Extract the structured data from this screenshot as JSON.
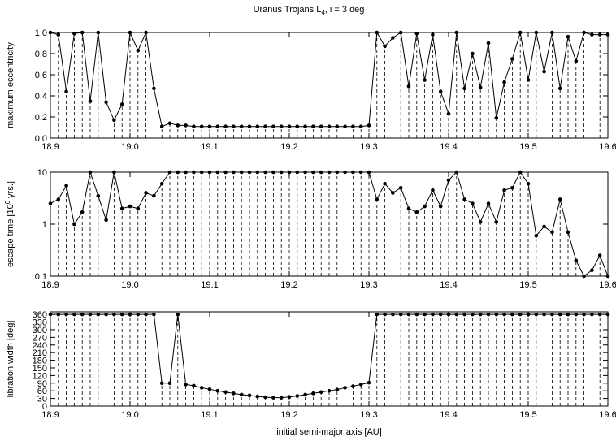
{
  "chart_data": [
    {
      "type": "line",
      "title": [
        "Uranus Trojans L",
        "4",
        ", i = 3 deg"
      ],
      "ylabel": [
        "maximum eccentricity"
      ],
      "x": [
        18.9,
        18.91,
        18.92,
        18.93,
        18.94,
        18.95,
        18.96,
        18.97,
        18.98,
        18.99,
        19.0,
        19.01,
        19.02,
        19.03,
        19.04,
        19.05,
        19.06,
        19.07,
        19.08,
        19.09,
        19.1,
        19.11,
        19.12,
        19.13,
        19.14,
        19.15,
        19.16,
        19.17,
        19.18,
        19.19,
        19.2,
        19.21,
        19.22,
        19.23,
        19.24,
        19.25,
        19.26,
        19.27,
        19.28,
        19.29,
        19.3,
        19.31,
        19.32,
        19.33,
        19.34,
        19.35,
        19.36,
        19.37,
        19.38,
        19.39,
        19.4,
        19.41,
        19.42,
        19.43,
        19.44,
        19.45,
        19.46,
        19.47,
        19.48,
        19.49,
        19.5,
        19.51,
        19.52,
        19.53,
        19.54,
        19.55,
        19.56,
        19.57,
        19.58,
        19.59,
        19.6
      ],
      "values": [
        1.0,
        0.98,
        0.44,
        0.99,
        1.0,
        0.35,
        1.0,
        0.34,
        0.17,
        0.32,
        1.0,
        0.83,
        1.0,
        0.47,
        0.11,
        0.14,
        0.12,
        0.12,
        0.11,
        0.11,
        0.11,
        0.11,
        0.11,
        0.11,
        0.11,
        0.11,
        0.11,
        0.11,
        0.11,
        0.11,
        0.11,
        0.11,
        0.11,
        0.11,
        0.11,
        0.11,
        0.11,
        0.11,
        0.11,
        0.11,
        0.12,
        1.0,
        0.87,
        0.95,
        1.0,
        0.49,
        0.99,
        0.55,
        0.98,
        0.44,
        0.23,
        1.0,
        0.47,
        0.8,
        0.48,
        0.9,
        0.19,
        0.53,
        0.75,
        1.0,
        0.55,
        1.0,
        0.63,
        1.0,
        0.47,
        0.96,
        0.73,
        1.0,
        0.98,
        0.98,
        0.98
      ],
      "color": "#000000",
      "xlim": [
        18.9,
        19.6
      ],
      "ylim": [
        0,
        1
      ],
      "xticks": [
        18.9,
        {
          "value": 19,
          "label": "19.0"
        },
        19.1,
        19.2,
        19.3,
        19.4,
        19.5,
        19.6
      ],
      "yticks": [
        {
          "value": 0,
          "label": "0.0"
        },
        0.2,
        0.4,
        0.6,
        0.8,
        {
          "value": 1,
          "label": "1.0"
        }
      ]
    },
    {
      "type": "line",
      "ylabel": [
        "escape time [10",
        "6",
        " yrs.]"
      ],
      "log_y": true,
      "x": [
        18.9,
        18.91,
        18.92,
        18.93,
        18.94,
        18.95,
        18.96,
        18.97,
        18.98,
        18.99,
        19.0,
        19.01,
        19.02,
        19.03,
        19.04,
        19.05,
        19.06,
        19.07,
        19.08,
        19.09,
        19.1,
        19.11,
        19.12,
        19.13,
        19.14,
        19.15,
        19.16,
        19.17,
        19.18,
        19.19,
        19.2,
        19.21,
        19.22,
        19.23,
        19.24,
        19.25,
        19.26,
        19.27,
        19.28,
        19.29,
        19.3,
        19.31,
        19.32,
        19.33,
        19.34,
        19.35,
        19.36,
        19.37,
        19.38,
        19.39,
        19.4,
        19.41,
        19.42,
        19.43,
        19.44,
        19.45,
        19.46,
        19.47,
        19.48,
        19.49,
        19.5,
        19.51,
        19.52,
        19.53,
        19.54,
        19.55,
        19.56,
        19.57,
        19.58,
        19.59,
        19.6
      ],
      "values": [
        2.5,
        3,
        5.5,
        1.0,
        1.7,
        10,
        3.5,
        1.2,
        10,
        2,
        2.2,
        2,
        4,
        3.5,
        6,
        10,
        10,
        10,
        10,
        10,
        10,
        10,
        10,
        10,
        10,
        10,
        10,
        10,
        10,
        10,
        10,
        10,
        10,
        10,
        10,
        10,
        10,
        10,
        10,
        10,
        10,
        3,
        6,
        4,
        5,
        2,
        1.7,
        2.2,
        4.5,
        2.2,
        7,
        10,
        3,
        2.5,
        1.1,
        2.5,
        1.1,
        4.5,
        5,
        10,
        6,
        0.6,
        0.9,
        0.7,
        3,
        0.7,
        0.2,
        0.1,
        0.13,
        0.25,
        0.1
      ],
      "color": "#000000",
      "xlim": [
        18.9,
        19.6
      ],
      "ylim": [
        0.1,
        10
      ],
      "xticks": [
        18.9,
        {
          "value": 19,
          "label": "19.0"
        },
        19.1,
        19.2,
        19.3,
        19.4,
        19.5,
        19.6
      ],
      "yticks": [
        0.1,
        1,
        10
      ]
    },
    {
      "type": "line",
      "ylabel": [
        "libration width [deg]"
      ],
      "xlabel": "initial semi-major axis [AU]",
      "x": [
        18.9,
        18.91,
        18.92,
        18.93,
        18.94,
        18.95,
        18.96,
        18.97,
        18.98,
        18.99,
        19.0,
        19.01,
        19.02,
        19.03,
        19.04,
        19.05,
        19.06,
        19.07,
        19.08,
        19.09,
        19.1,
        19.11,
        19.12,
        19.13,
        19.14,
        19.15,
        19.16,
        19.17,
        19.18,
        19.19,
        19.2,
        19.21,
        19.22,
        19.23,
        19.24,
        19.25,
        19.26,
        19.27,
        19.28,
        19.29,
        19.3,
        19.31,
        19.32,
        19.33,
        19.34,
        19.35,
        19.36,
        19.37,
        19.38,
        19.39,
        19.4,
        19.41,
        19.42,
        19.43,
        19.44,
        19.45,
        19.46,
        19.47,
        19.48,
        19.49,
        19.5,
        19.51,
        19.52,
        19.53,
        19.54,
        19.55,
        19.56,
        19.57,
        19.58,
        19.59,
        19.6
      ],
      "values": [
        360,
        360,
        360,
        360,
        360,
        360,
        360,
        360,
        360,
        360,
        360,
        360,
        360,
        360,
        90,
        90,
        360,
        85,
        80,
        72,
        66,
        60,
        55,
        50,
        45,
        42,
        38,
        35,
        33,
        33,
        36,
        40,
        45,
        50,
        55,
        60,
        65,
        72,
        78,
        85,
        92,
        360,
        360,
        360,
        360,
        360,
        360,
        360,
        360,
        360,
        360,
        360,
        360,
        360,
        360,
        360,
        360,
        360,
        360,
        360,
        360,
        360,
        360,
        360,
        360,
        360,
        360,
        360,
        360,
        360,
        360
      ],
      "color": "#000000",
      "xlim": [
        18.9,
        19.6
      ],
      "ylim": [
        0,
        370
      ],
      "xticks": [
        18.9,
        {
          "value": 19,
          "label": "19.0"
        },
        19.1,
        19.2,
        19.3,
        19.4,
        19.5,
        19.6
      ],
      "yticks": [
        0,
        30,
        60,
        90,
        120,
        150,
        180,
        210,
        240,
        270,
        300,
        330,
        360
      ]
    }
  ]
}
